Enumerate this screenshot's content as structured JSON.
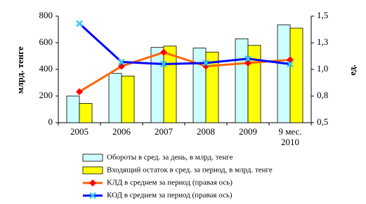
{
  "chart_data": {
    "type": "bar-line",
    "y_label": "млрд. тенге",
    "y2_label": "ед.",
    "categories": [
      "2005",
      "2006",
      "2007",
      "2008",
      "2009",
      "9 мес. 2010"
    ],
    "ylim": [
      0,
      800
    ],
    "yticks": [
      0,
      200,
      400,
      600,
      800
    ],
    "y2lim": [
      0.5,
      1.5
    ],
    "y2ticks": [
      {
        "value": 0.5,
        "label": "0,5"
      },
      {
        "value": 0.75,
        "label": "0,8"
      },
      {
        "value": 1.0,
        "label": "1,0"
      },
      {
        "value": 1.25,
        "label": "1,3"
      },
      {
        "value": 1.5,
        "label": "1,5"
      }
    ],
    "grid": false,
    "series": [
      {
        "name": "Обороты в сред. за день,  в млрд. тенге",
        "type": "bar",
        "color": "#ccffff",
        "values": [
          200,
          370,
          565,
          560,
          630,
          735
        ]
      },
      {
        "name": "Входящий остаток в сред. за период, в млрд. тенге",
        "type": "bar",
        "color": "#ffff00",
        "values": [
          145,
          350,
          575,
          530,
          580,
          710
        ]
      },
      {
        "name": "КЛД в среднем за период (правая ось)",
        "type": "line",
        "axis": "y2",
        "color": "#ff6600",
        "marker": "diamond",
        "marker_color": "#ff0000",
        "values": [
          0.79,
          1.03,
          1.16,
          1.03,
          1.06,
          1.09
        ]
      },
      {
        "name": "КОД в среднем за период (правая ось)",
        "type": "line",
        "axis": "y2",
        "color": "#0000ff",
        "marker": "x",
        "marker_color": "#33ccff",
        "values": [
          1.43,
          1.07,
          1.05,
          1.06,
          1.1,
          1.05
        ]
      }
    ]
  }
}
